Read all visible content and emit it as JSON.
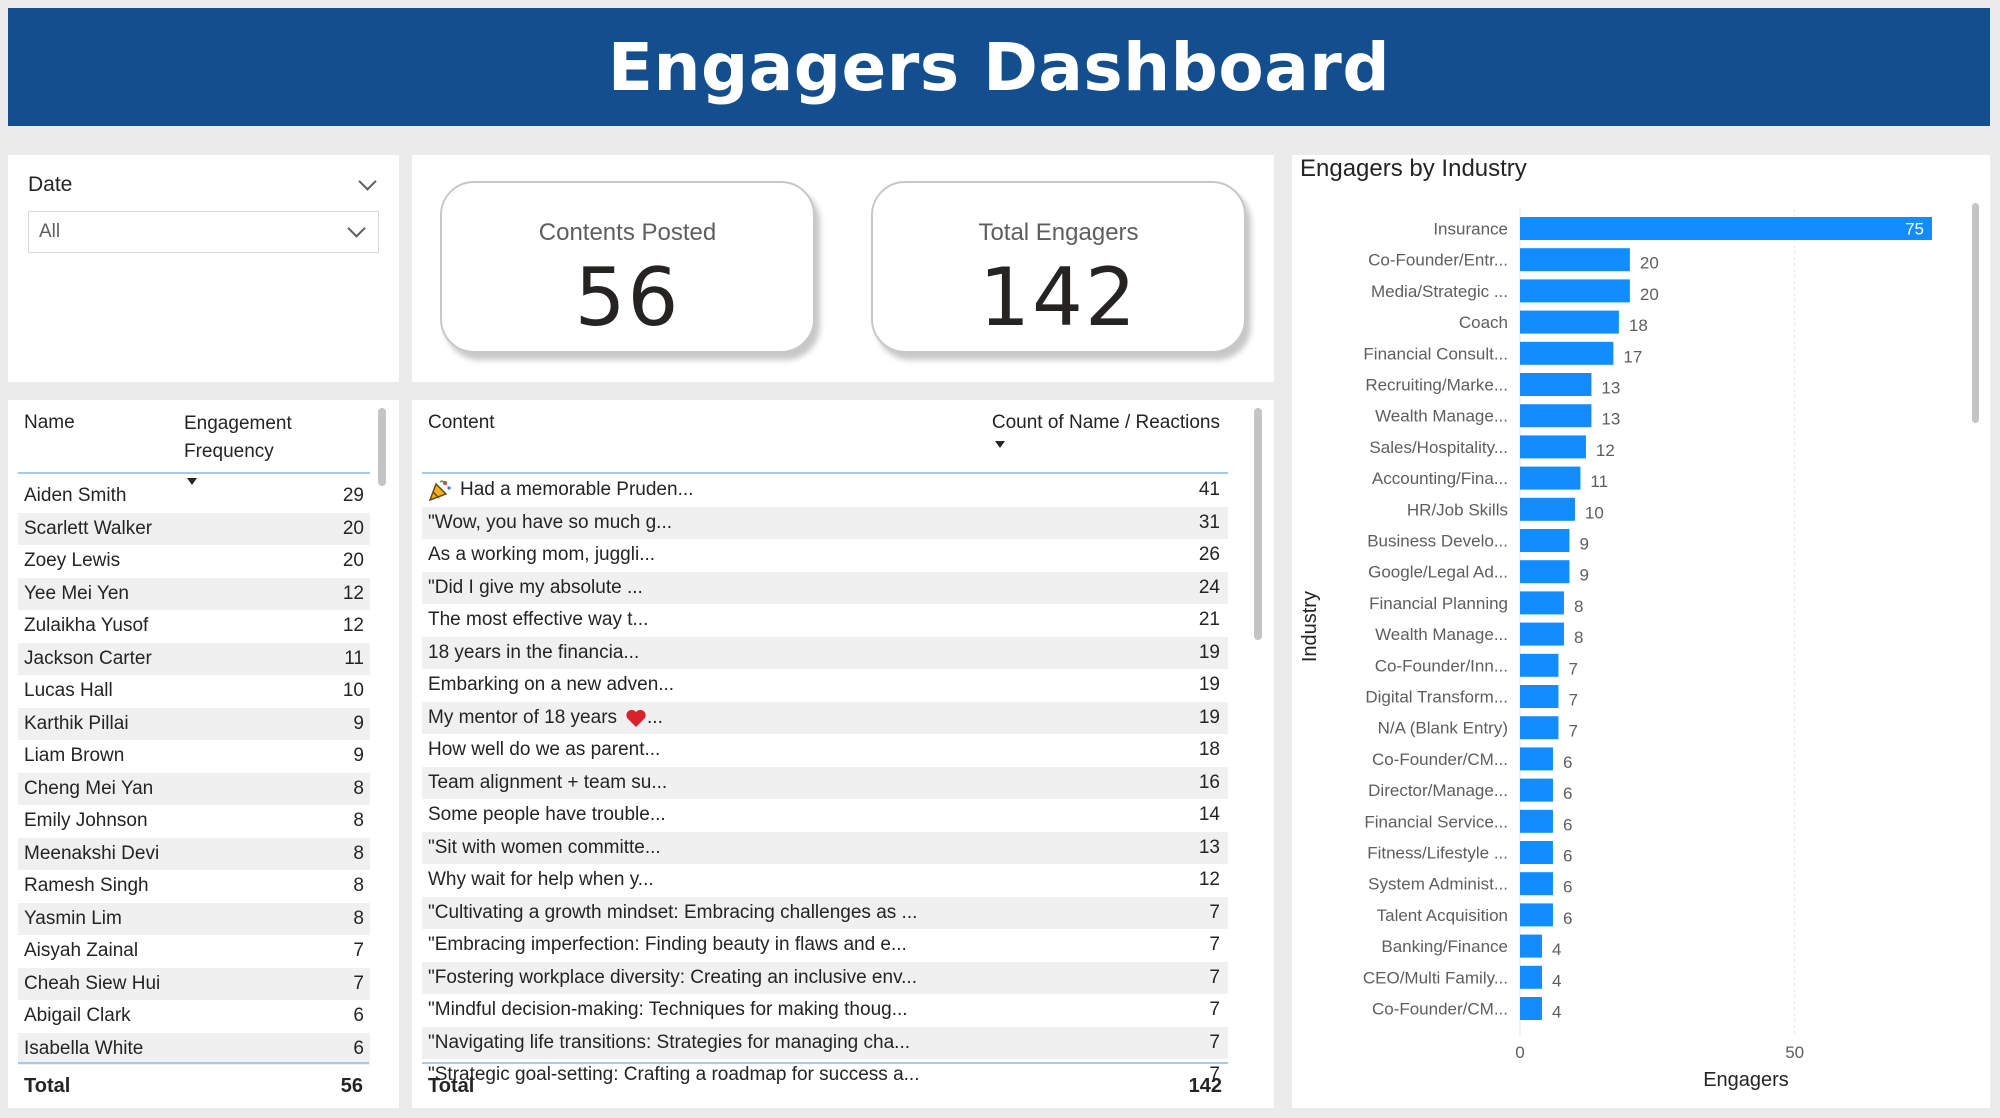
{
  "header": {
    "title": "Engagers Dashboard"
  },
  "slicer": {
    "label": "Date",
    "value": "All"
  },
  "kpis": {
    "contents": {
      "label": "Contents Posted",
      "value": "56"
    },
    "engagers": {
      "label": "Total Engagers",
      "value": "142"
    }
  },
  "names_table": {
    "col_name": "Name",
    "col_freq": "Engagement Frequency",
    "rows": [
      {
        "name": "Aiden Smith",
        "value": "29"
      },
      {
        "name": "Scarlett Walker",
        "value": "20"
      },
      {
        "name": "Zoey Lewis",
        "value": "20"
      },
      {
        "name": "Yee Mei Yen",
        "value": "12"
      },
      {
        "name": "Zulaikha Yusof",
        "value": "12"
      },
      {
        "name": "Jackson Carter",
        "value": "11"
      },
      {
        "name": "Lucas Hall",
        "value": "10"
      },
      {
        "name": "Karthik Pillai",
        "value": "9"
      },
      {
        "name": "Liam Brown",
        "value": "9"
      },
      {
        "name": "Cheng Mei Yan",
        "value": "8"
      },
      {
        "name": "Emily Johnson",
        "value": "8"
      },
      {
        "name": "Meenakshi Devi",
        "value": "8"
      },
      {
        "name": "Ramesh Singh",
        "value": "8"
      },
      {
        "name": "Yasmin Lim",
        "value": "8"
      },
      {
        "name": "Aisyah Zainal",
        "value": "7"
      },
      {
        "name": "Cheah Siew Hui",
        "value": "7"
      },
      {
        "name": "Abigail Clark",
        "value": "6"
      },
      {
        "name": "Isabella White",
        "value": "6"
      }
    ],
    "total_label": "Total",
    "total_value": "56"
  },
  "content_table": {
    "col_content": "Content",
    "col_count": "Count of Name / Reactions",
    "rows": [
      {
        "text": "Had a memorable Pruden...",
        "value": "41",
        "icon": "party-popper-icon"
      },
      {
        "text": "\"Wow, you have so much g...",
        "value": "31"
      },
      {
        "text": "As a working mom, juggli...",
        "value": "26"
      },
      {
        "text": "\"Did I give my absolute ...",
        "value": "24"
      },
      {
        "text": "The most effective way t...",
        "value": "21"
      },
      {
        "text": "18 years in the financia...",
        "value": "19"
      },
      {
        "text": "Embarking on a new adven...",
        "value": "19"
      },
      {
        "text": "My mentor of 18 years",
        "suffix": "...",
        "value": "19",
        "icon": "heart-icon"
      },
      {
        "text": "How well do we as parent...",
        "value": "18"
      },
      {
        "text": "Team alignment + team su...",
        "value": "16"
      },
      {
        "text": "Some people have trouble...",
        "value": "14"
      },
      {
        "text": "\"Sit with women committe...",
        "value": "13"
      },
      {
        "text": "Why wait for help when y...",
        "value": "12"
      },
      {
        "text": "\"Cultivating a growth mindset: Embracing challenges as ...",
        "value": "7"
      },
      {
        "text": "\"Embracing imperfection: Finding beauty in flaws and e...",
        "value": "7"
      },
      {
        "text": "\"Fostering workplace diversity: Creating an inclusive env...",
        "value": "7"
      },
      {
        "text": "\"Mindful decision-making: Techniques for making thoug...",
        "value": "7"
      },
      {
        "text": "\"Navigating life transitions: Strategies for managing cha...",
        "value": "7"
      },
      {
        "text": "\"Strategic goal-setting: Crafting a roadmap for success a...",
        "value": "7"
      }
    ],
    "total_label": "Total",
    "total_value": "142"
  },
  "chart_data": {
    "type": "bar",
    "orientation": "horizontal",
    "title": "Engagers by Industry",
    "xlabel": "Engagers",
    "ylabel": "Industry",
    "xlim": [
      0,
      75
    ],
    "xticks": [
      "0",
      "50"
    ],
    "grid": true,
    "color": "#118dff",
    "categories": [
      "Insurance",
      "Co-Founder/Entr...",
      "Media/Strategic ...",
      "Coach",
      "Financial Consult...",
      "Recruiting/Marke...",
      "Wealth Manage...",
      "Sales/Hospitality...",
      "Accounting/Fina...",
      "HR/Job Skills",
      "Business Develo...",
      "Google/Legal Ad...",
      "Financial Planning",
      "Wealth Manage...",
      "Co-Founder/Inn...",
      "Digital Transform...",
      "N/A (Blank Entry)",
      "Co-Founder/CM...",
      "Director/Manage...",
      "Financial Service...",
      "Fitness/Lifestyle ...",
      "System Administ...",
      "Talent Acquisition",
      "Banking/Finance",
      "CEO/Multi Family...",
      "Co-Founder/CM..."
    ],
    "values": [
      75,
      20,
      20,
      18,
      17,
      13,
      13,
      12,
      11,
      10,
      9,
      9,
      8,
      8,
      7,
      7,
      7,
      6,
      6,
      6,
      6,
      6,
      6,
      4,
      4,
      4
    ]
  }
}
